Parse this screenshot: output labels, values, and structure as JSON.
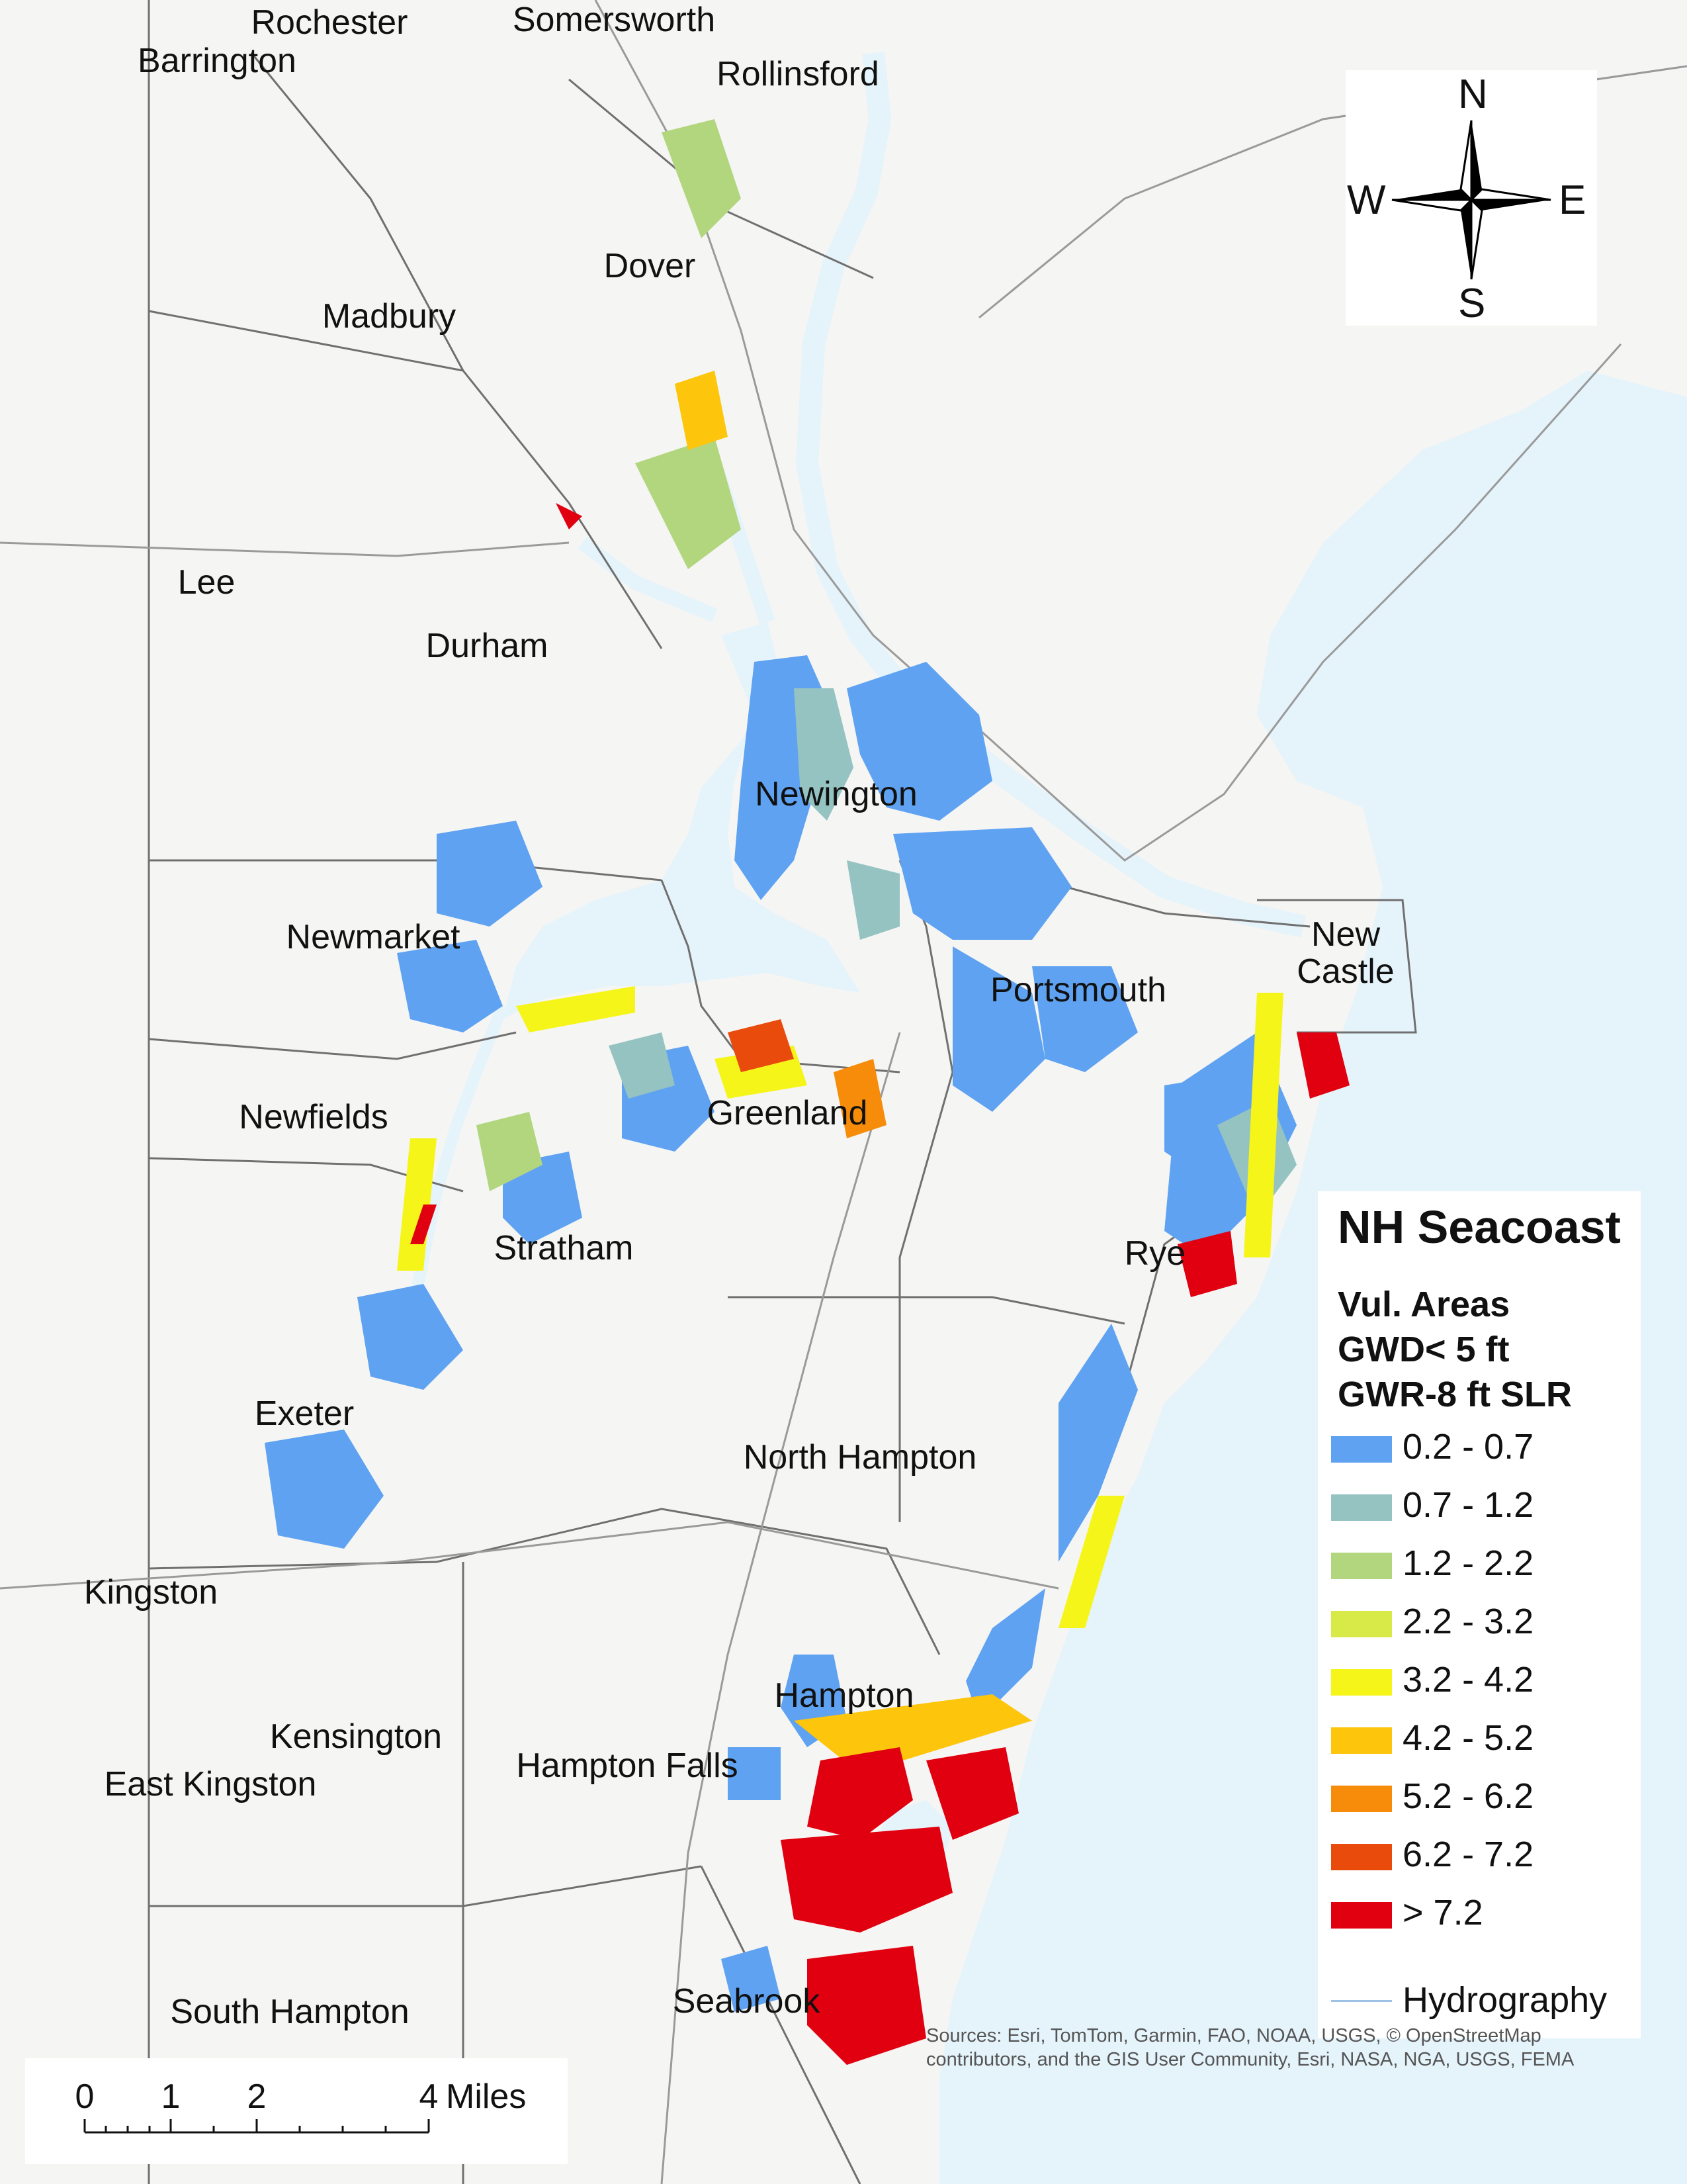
{
  "towns": [
    {
      "id": "rochester",
      "label": "Rochester"
    },
    {
      "id": "somersworth",
      "label": "Somersworth"
    },
    {
      "id": "barrington",
      "label": "Barrington"
    },
    {
      "id": "rollinsford",
      "label": "Rollinsford"
    },
    {
      "id": "dover",
      "label": "Dover"
    },
    {
      "id": "madbury",
      "label": "Madbury"
    },
    {
      "id": "lee",
      "label": "Lee"
    },
    {
      "id": "durham",
      "label": "Durham"
    },
    {
      "id": "newington",
      "label": "Newington"
    },
    {
      "id": "newmarket",
      "label": "Newmarket"
    },
    {
      "id": "portsmouth",
      "label": "Portsmouth"
    },
    {
      "id": "new-castle",
      "label": "New Castle"
    },
    {
      "id": "newfields",
      "label": "Newfields"
    },
    {
      "id": "greenland",
      "label": "Greenland"
    },
    {
      "id": "stratham",
      "label": "Stratham"
    },
    {
      "id": "rye",
      "label": "Rye"
    },
    {
      "id": "exeter",
      "label": "Exeter"
    },
    {
      "id": "north-hampton",
      "label": "North Hampton"
    },
    {
      "id": "kingston",
      "label": "Kingston"
    },
    {
      "id": "hampton",
      "label": "Hampton"
    },
    {
      "id": "kensington",
      "label": "Kensington"
    },
    {
      "id": "east-kingston",
      "label": "East Kingston"
    },
    {
      "id": "hampton-falls",
      "label": "Hampton Falls"
    },
    {
      "id": "south-hampton",
      "label": "South Hampton"
    },
    {
      "id": "seabrook",
      "label": "Seabrook"
    }
  ],
  "compass": {
    "n": "N",
    "s": "S",
    "e": "E",
    "w": "W"
  },
  "legend": {
    "title": "NH Seacoast",
    "subtitle_lines": [
      "Vul. Areas",
      "GWD< 5 ft",
      "GWR-8 ft SLR"
    ],
    "classes": [
      {
        "label": "0.2 - 0.7",
        "color": "#5fa2f2"
      },
      {
        "label": "0.7 - 1.2",
        "color": "#94c3c2"
      },
      {
        "label": "1.2 - 2.2",
        "color": "#b2d67e"
      },
      {
        "label": "2.2 - 3.2",
        "color": "#d8ea47"
      },
      {
        "label": "3.2 - 4.2",
        "color": "#f5f51a"
      },
      {
        "label": "4.2 - 5.2",
        "color": "#fdc50c"
      },
      {
        "label": "5.2 - 6.2",
        "color": "#f68c09"
      },
      {
        "label": "6.2 - 7.2",
        "color": "#e94b0c"
      },
      {
        "label": "> 7.2",
        "color": "#e0000f"
      }
    ],
    "hydro_label": "Hydrography",
    "hydro_color": "#9dc2e5"
  },
  "scale": {
    "ticks": [
      "0",
      "1",
      "2",
      "4"
    ],
    "unit": "Miles"
  },
  "attribution": "Sources: Esri, TomTom, Garmin, FAO, NOAA, USGS, © OpenStreetMap contributors, and the GIS User Community, Esri, NASA, NGA, USGS, FEMA",
  "colors": {
    "land": "#f5f5f3",
    "water": "#e5f3fb",
    "boundary": "#707070"
  }
}
